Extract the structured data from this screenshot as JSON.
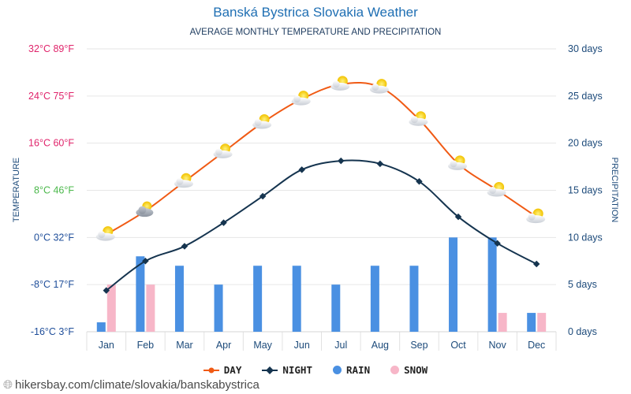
{
  "header": {
    "title": "Banská Bystrica Slovakia Weather",
    "subtitle": "AVERAGE MONTHLY TEMPERATURE AND PRECIPITATION"
  },
  "source": "hikersbay.com/climate/slovakia/banskabystrica",
  "colors": {
    "day": "#f05a14",
    "night": "#15344f",
    "rain": "#4a90e2",
    "snow": "#f7b6c8",
    "left_hot": "#e0246b",
    "left_mild": "#4bb84b",
    "left_cold": "#1f4e9a",
    "right_axis": "#1c4a7a"
  },
  "legend": [
    {
      "key": "day",
      "label": "DAY"
    },
    {
      "key": "night",
      "label": "NIGHT"
    },
    {
      "key": "rain",
      "label": "RAIN"
    },
    {
      "key": "snow",
      "label": "SNOW"
    }
  ],
  "chart_data": {
    "type": "line",
    "title": "Banská Bystrica Slovakia Weather",
    "subtitle": "AVERAGE MONTHLY TEMPERATURE AND PRECIPITATION",
    "categories": [
      "Jan",
      "Feb",
      "Mar",
      "Apr",
      "May",
      "Jun",
      "Jul",
      "Aug",
      "Sep",
      "Oct",
      "Nov",
      "Dec"
    ],
    "left_axis": {
      "label": "TEMPERATURE",
      "ylim": [
        -16,
        32
      ],
      "ticks": [
        {
          "value": 32,
          "label": "32°C 89°F"
        },
        {
          "value": 24,
          "label": "24°C 75°F"
        },
        {
          "value": 16,
          "label": "16°C 60°F"
        },
        {
          "value": 8,
          "label": "8°C 46°F"
        },
        {
          "value": 0,
          "label": "0°C 32°F"
        },
        {
          "value": -8,
          "label": "-8°C 17°F"
        },
        {
          "value": -16,
          "label": "-16°C 3°F"
        }
      ]
    },
    "right_axis": {
      "label": "PRECIPITATION",
      "ylim": [
        0,
        30
      ],
      "ticks": [
        {
          "value": 30,
          "label": "30 days"
        },
        {
          "value": 25,
          "label": "25 days"
        },
        {
          "value": 20,
          "label": "20 days"
        },
        {
          "value": 15,
          "label": "15 days"
        },
        {
          "value": 10,
          "label": "10 days"
        },
        {
          "value": 5,
          "label": "5 days"
        },
        {
          "value": 0,
          "label": "0 days"
        }
      ]
    },
    "series": [
      {
        "name": "DAY",
        "axis": "left",
        "kind": "line",
        "values": [
          0.5,
          4.5,
          9.5,
          14.5,
          19.5,
          23.5,
          26,
          25.5,
          20,
          12.5,
          8,
          3.5
        ]
      },
      {
        "name": "NIGHT",
        "axis": "left",
        "kind": "line",
        "values": [
          -9,
          -4,
          -1.5,
          2.5,
          7,
          11.5,
          13,
          12.5,
          9.5,
          3.5,
          -1,
          -4.5
        ]
      },
      {
        "name": "RAIN",
        "axis": "right",
        "kind": "bar",
        "values": [
          1,
          8,
          7,
          5,
          7,
          7,
          5,
          7,
          7,
          10,
          10,
          2
        ]
      },
      {
        "name": "SNOW",
        "axis": "right",
        "kind": "bar",
        "values": [
          5,
          5,
          0,
          0,
          0,
          0,
          0,
          0,
          0,
          0,
          2,
          2
        ]
      }
    ],
    "weather_icons": [
      "partly-cloudy",
      "cloudy",
      "partly-cloudy",
      "partly-cloudy",
      "partly-cloudy",
      "partly-cloudy",
      "partly-cloudy",
      "partly-cloudy",
      "partly-cloudy",
      "partly-cloudy",
      "partly-cloudy",
      "partly-cloudy"
    ],
    "grid": true,
    "legend_position": "bottom"
  }
}
